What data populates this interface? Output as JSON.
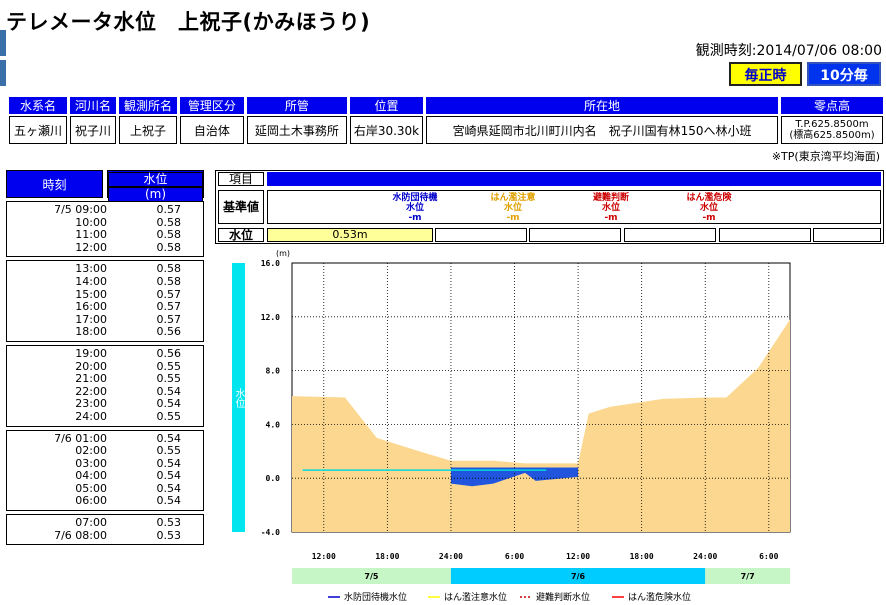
{
  "title": "テレメータ水位　上祝子(かみほうり)",
  "observation_label": "観測時刻:",
  "observation_time": "2014/07/06 08:00",
  "buttons": {
    "hourly": "毎正時",
    "ten_min": "10分毎"
  },
  "info": {
    "headers": [
      "水系名",
      "河川名",
      "観測所名",
      "管理区分",
      "所管",
      "位置",
      "所在地",
      "零点高"
    ],
    "values": [
      "五ヶ瀬川",
      "祝子川",
      "上祝子",
      "自治体",
      "延岡土木事務所",
      "右岸30.30k",
      "宮崎県延岡市北川町川内名　祝子川国有林150へ林小班"
    ],
    "zero_height_1": "T.P.625.8500m",
    "zero_height_2": "(標高625.8500m)"
  },
  "note": "※TP(東京湾平均海面)",
  "table": {
    "header_time": "時刻",
    "header_level_1": "水位",
    "header_level_2": "(m)",
    "groups": [
      [
        [
          "7/5 09:00",
          "0.57"
        ],
        [
          "10:00",
          "0.58"
        ],
        [
          "11:00",
          "0.58"
        ],
        [
          "12:00",
          "0.58"
        ]
      ],
      [
        [
          "13:00",
          "0.58"
        ],
        [
          "14:00",
          "0.58"
        ],
        [
          "15:00",
          "0.57"
        ],
        [
          "16:00",
          "0.57"
        ],
        [
          "17:00",
          "0.57"
        ],
        [
          "18:00",
          "0.56"
        ]
      ],
      [
        [
          "19:00",
          "0.56"
        ],
        [
          "20:00",
          "0.55"
        ],
        [
          "21:00",
          "0.55"
        ],
        [
          "22:00",
          "0.54"
        ],
        [
          "23:00",
          "0.54"
        ],
        [
          "24:00",
          "0.55"
        ]
      ],
      [
        [
          "7/6 01:00",
          "0.54"
        ],
        [
          "02:00",
          "0.55"
        ],
        [
          "03:00",
          "0.54"
        ],
        [
          "04:00",
          "0.54"
        ],
        [
          "05:00",
          "0.54"
        ],
        [
          "06:00",
          "0.54"
        ]
      ],
      [
        [
          "07:00",
          "0.53"
        ],
        [
          "7/6 08:00",
          "0.53"
        ]
      ]
    ]
  },
  "criteria": {
    "item_label": "項目",
    "base_label": "基準値",
    "level_label": "水位",
    "current_level": "0.53m",
    "levels": [
      {
        "name_1": "水防団待機",
        "name_2": "水位",
        "value": "-m",
        "color": "#0000cc"
      },
      {
        "name_1": "はん濫注意",
        "name_2": "水位",
        "value": "-m",
        "color": "#e0a000"
      },
      {
        "name_1": "避難判断",
        "name_2": "水位",
        "value": "-m",
        "color": "#cc0000"
      },
      {
        "name_1": "はん濫危険",
        "name_2": "水位",
        "value": "-m",
        "color": "#cc0000"
      }
    ]
  },
  "chart_data": {
    "type": "area",
    "unit_label": "(m)",
    "side_label": "水位",
    "ylim": [
      -4,
      16
    ],
    "y_ticks": [
      "16.0",
      "12.0",
      "8.0",
      "4.0",
      "0.0",
      "-4.0"
    ],
    "x_ticks": [
      "12:00",
      "18:00",
      "24:00",
      "6:00",
      "12:00",
      "18:00",
      "24:00",
      "6:00"
    ],
    "x_tick_hours": [
      12,
      18,
      24,
      30,
      36,
      42,
      48,
      54
    ],
    "xlim_hours": [
      9,
      56
    ],
    "date_bands": [
      {
        "label": "7/5",
        "start": 9,
        "end": 24,
        "color": "#c6f5c6"
      },
      {
        "label": "7/6",
        "start": 24,
        "end": 48,
        "color": "#00ccff"
      },
      {
        "label": "7/7",
        "start": 48,
        "end": 56,
        "color": "#c6f5c6"
      }
    ],
    "terrain": {
      "x": [
        9,
        14,
        17,
        21,
        24,
        28,
        31,
        36,
        37,
        39,
        44,
        48,
        50,
        53,
        56
      ],
      "y": [
        6.1,
        6.0,
        3.0,
        2.0,
        1.3,
        1.3,
        1.1,
        1.1,
        4.8,
        5.3,
        5.9,
        6.0,
        6.0,
        8.2,
        11.8
      ]
    },
    "pool": {
      "x": [
        24,
        26,
        28,
        31,
        32,
        36
      ],
      "y1": [
        0.8,
        0.8,
        0.8,
        0.8,
        0.8,
        0.8
      ],
      "y2": [
        -0.4,
        -0.6,
        -0.4,
        0.4,
        -0.2,
        0.1
      ]
    },
    "water_level": {
      "x": [
        10,
        33
      ],
      "y": [
        0.6,
        0.6
      ],
      "color": "#00dddd"
    },
    "legend": [
      {
        "label": "水防団待機水位",
        "color": "#0000cc",
        "style": "solid"
      },
      {
        "label": "はん濫注意水位",
        "color": "#ffff00",
        "style": "solid"
      },
      {
        "label": "避難判断水位",
        "color": "#cc0000",
        "style": "dashed"
      },
      {
        "label": "はん濫危険水位",
        "color": "#ff0000",
        "style": "solid"
      }
    ]
  }
}
